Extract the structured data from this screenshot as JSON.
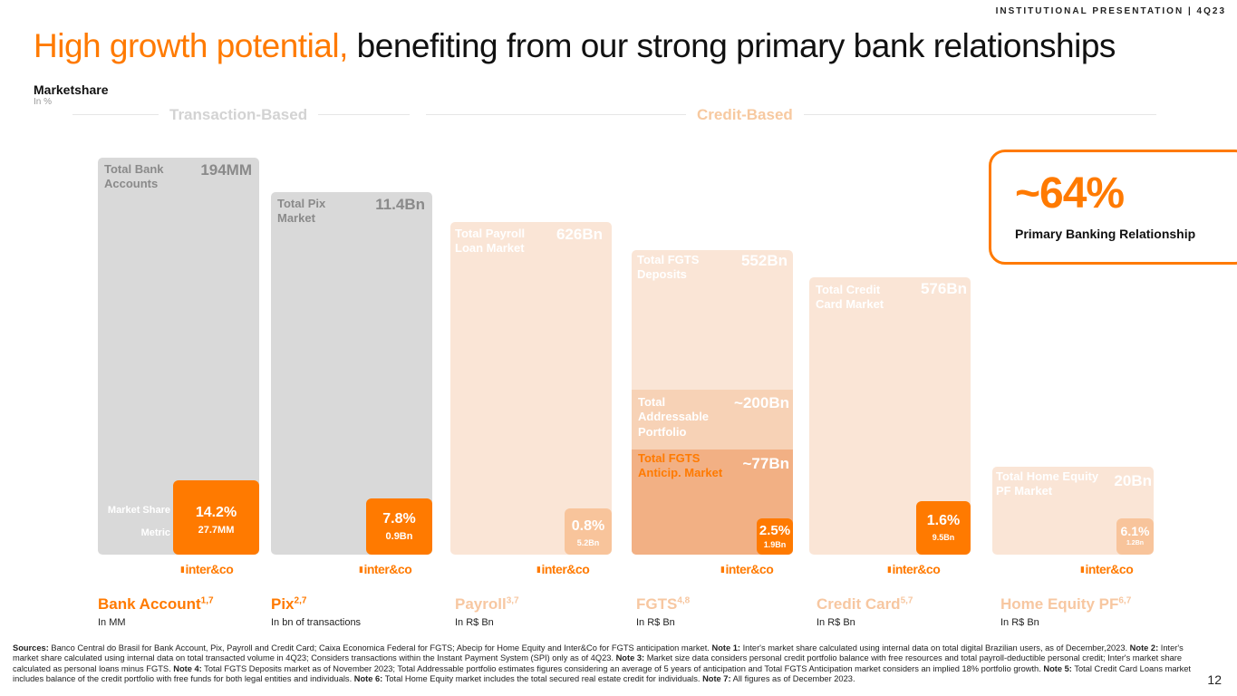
{
  "header": {
    "tag": "INSTITUTIONAL PRESENTATION | 4Q23",
    "title_highlight": "High growth potential,",
    "title_rest": " benefiting from our strong primary bank relationships",
    "subtitle": "Marketshare",
    "subtitle_unit": "In %"
  },
  "sections": {
    "transaction": "Transaction-Based",
    "credit": "Credit-Based"
  },
  "legend": {
    "market_share": "Market Share",
    "metric": "Metric"
  },
  "callout": {
    "value": "~64%",
    "label": "Primary Banking Relationship"
  },
  "logo_text": "inter&co",
  "bars": [
    {
      "label": "Total Bank Accounts",
      "value": "194MM"
    },
    {
      "label": "Total Pix Market",
      "value": "11.4Bn"
    },
    {
      "label": "Total Payroll Loan Market",
      "value": "626Bn"
    },
    {
      "label": "Total FGTS Deposits",
      "value": "552Bn"
    },
    {
      "label": "Total Credit Card Market",
      "value": "576Bn"
    },
    {
      "label": "Total Home Equity PF Market",
      "value": "20Bn"
    }
  ],
  "fgts_sub": [
    {
      "label": "Total Addressable Portfolio",
      "value": "~200Bn"
    },
    {
      "label": "Total FGTS Anticip. Market",
      "value": "~77Bn"
    }
  ],
  "shares": [
    {
      "pct": "14.2%",
      "metric": "27.7MM"
    },
    {
      "pct": "7.8%",
      "metric": "0.9Bn"
    },
    {
      "pct": "0.8%",
      "metric": "5.2Bn"
    },
    {
      "pct": "2.5%",
      "metric": "1.9Bn"
    },
    {
      "pct": "1.6%",
      "metric": "9.5Bn"
    },
    {
      "pct": "6.1%",
      "metric": "1.2Bn"
    }
  ],
  "categories": [
    {
      "name": "Bank Account",
      "sup": "1,7",
      "unit": "In MM"
    },
    {
      "name": "Pix",
      "sup": "2,7",
      "unit": "In bn of transactions"
    },
    {
      "name": "Payroll",
      "sup": "3,7",
      "unit": "In R$ Bn"
    },
    {
      "name": "FGTS",
      "sup": "4,8",
      "unit": "In R$ Bn"
    },
    {
      "name": "Credit Card",
      "sup": "5,7",
      "unit": "In R$ Bn"
    },
    {
      "name": "Home Equity PF",
      "sup": "6,7",
      "unit": "In R$ Bn"
    }
  ],
  "colors": {
    "accent": "#ff7a00",
    "gray_bar": "#d9d9d9",
    "peach_bar": "#fae5d6",
    "light_share": "#f8c49b"
  },
  "sources": {
    "p1_bold": "Sources:",
    "p1": " Banco Central do Brasil for Bank Account, Pix, Payroll and Credit Card; Caixa Economica Federal for FGTS; Abecip for Home Equity and Inter&Co for FGTS anticipation market. ",
    "n1_bold": "Note 1:",
    "n1": " Inter's market share calculated using internal data on total digital Brazilian users, as of December,2023. ",
    "n2_bold": "Note 2:",
    "n2": " Inter's market share calculated using internal data on total transacted volume in 4Q23; Considers transactions within the Instant Payment System (SPI) only as of 4Q23. ",
    "n3_bold": "Note 3:",
    "n3": " Market size data considers personal credit portfolio balance with free resources and total payroll-deductible personal credit; Inter's market share calculated as personal loans minus FGTS. ",
    "n4_bold": "Note 4:",
    "n4": " Total FGTS Deposits market as of November 2023; Total Addressable portfolio estimates figures considering an average of 5 years of anticipation and Total FGTS Anticipation market considers an implied 18% portfolio growth. ",
    "n5_bold": "Note 5:",
    "n5": " Total Credit Card Loans market includes balance of the credit portfolio with free funds for both legal entities and individuals. ",
    "n6_bold": "Note 6:",
    "n6": " Total Home Equity market includes the total secured real estate credit for individuals. ",
    "n7_bold": "Note 7:",
    "n7": " All figures as of December 2023."
  },
  "page_number": "12",
  "chart_data": {
    "type": "bar",
    "title": "Marketshare",
    "ylabel": "In %",
    "categories": [
      "Bank Account",
      "Pix",
      "Payroll",
      "FGTS",
      "Credit Card",
      "Home Equity PF"
    ],
    "series": [
      {
        "name": "Market Share",
        "values": [
          14.2,
          7.8,
          0.8,
          2.5,
          1.6,
          6.1
        ]
      }
    ],
    "totals": [
      "194MM",
      "11.4Bn",
      "626Bn",
      "552Bn",
      "576Bn",
      "20Bn"
    ],
    "metrics": [
      "27.7MM",
      "0.9Bn",
      "5.2Bn",
      "1.9Bn",
      "9.5Bn",
      "1.2Bn"
    ]
  }
}
